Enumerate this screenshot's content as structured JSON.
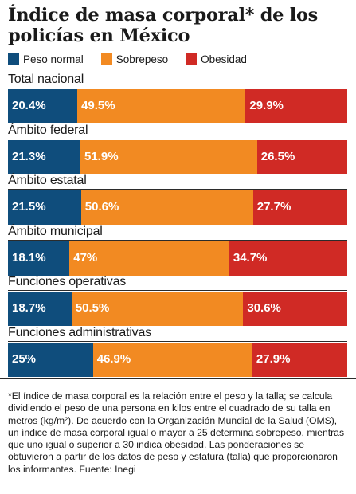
{
  "title": "Índice de masa corporal* de los policías en México",
  "chart_data": {
    "type": "bar",
    "orientation": "horizontal",
    "stacked": true,
    "percent": true,
    "categories": [
      "Total nacional",
      "Ámbito federal",
      "Ámbito estatal",
      "Ámbito municipal",
      "Funciones operativas",
      "Funciones administrativas"
    ],
    "series": [
      {
        "name": "Peso normal",
        "color": "#0f4d7c",
        "values": [
          20.4,
          21.3,
          21.5,
          18.1,
          18.7,
          25
        ],
        "labels": [
          "20.4%",
          "21.3%",
          "21.5%",
          "18.1%",
          "18.7%",
          "25%"
        ]
      },
      {
        "name": "Sobrepeso",
        "color": "#f28a22",
        "values": [
          49.5,
          51.9,
          50.6,
          47,
          50.5,
          46.9
        ],
        "labels": [
          "49.5%",
          "51.9%",
          "50.6%",
          "47%",
          "50.5%",
          "46.9%"
        ]
      },
      {
        "name": "Obesidad",
        "color": "#d02a25",
        "values": [
          29.9,
          26.5,
          27.7,
          34.7,
          30.6,
          27.9
        ],
        "labels": [
          "29.9%",
          "26.5%",
          "27.7%",
          "34.7%",
          "30.6%",
          "27.9%"
        ]
      }
    ],
    "legend_position": "top-left",
    "grid": false
  },
  "footnote": "*El índice de masa corporal es la relación entre el peso y la talla; se calcula dividiendo el peso de una persona en kilos entre el cuadrado de su talla en metros (kg/m²). De acuerdo con la Organización Mundial de la Salud (OMS), un índice de masa corporal igual o mayor a 25 determina sobrepeso, mientras que uno igual o superior a 30 indica obesidad. Las ponderaciones se obtuvieron a partir de los datos de peso y estatura (talla) que proporcionaron los informantes. Fuente: Inegi"
}
